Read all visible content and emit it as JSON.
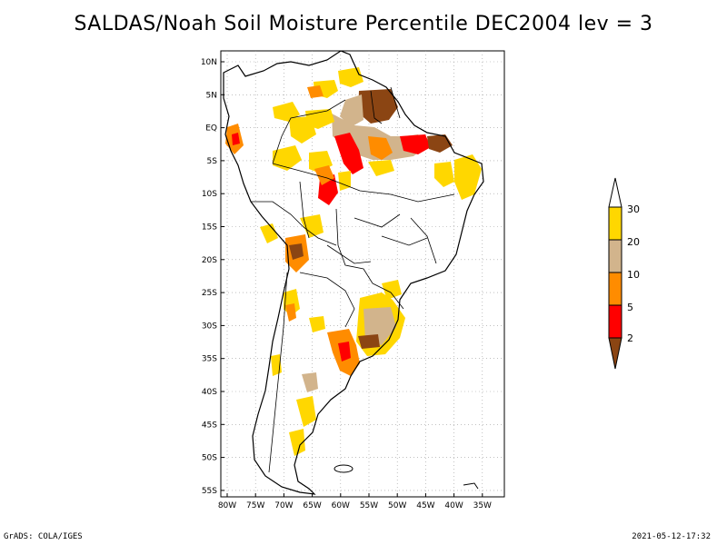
{
  "title": "SALDAS/Noah Soil Moisture Percentile DEC2004 lev = 3",
  "footer": {
    "left": "GrADS: COLA/IGES",
    "right": "2021-05-12-17:32"
  },
  "lat_labels": [
    "10N",
    "5N",
    "EQ",
    "5S",
    "10S",
    "15S",
    "20S",
    "25S",
    "30S",
    "35S",
    "40S",
    "45S",
    "50S",
    "55S"
  ],
  "lon_labels": [
    "80W",
    "75W",
    "70W",
    "65W",
    "60W",
    "55W",
    "50W",
    "45W",
    "40W",
    "35W"
  ],
  "colorbar": {
    "labels": [
      "30",
      "20",
      "10",
      "5",
      "2"
    ],
    "colors": {
      "above30": "#ffffff",
      "c20_30": "#ffd700",
      "c10_20": "#d2b48c",
      "c5_10": "#ff8c00",
      "c2_5": "#ff0000",
      "below2": "#8b4513"
    }
  },
  "map": {
    "projection": "lat-lon",
    "extent": {
      "lon": [
        -80,
        -32
      ],
      "lat": [
        -56,
        11
      ]
    },
    "grid": "dotted",
    "coastline_color": "#000000"
  }
}
